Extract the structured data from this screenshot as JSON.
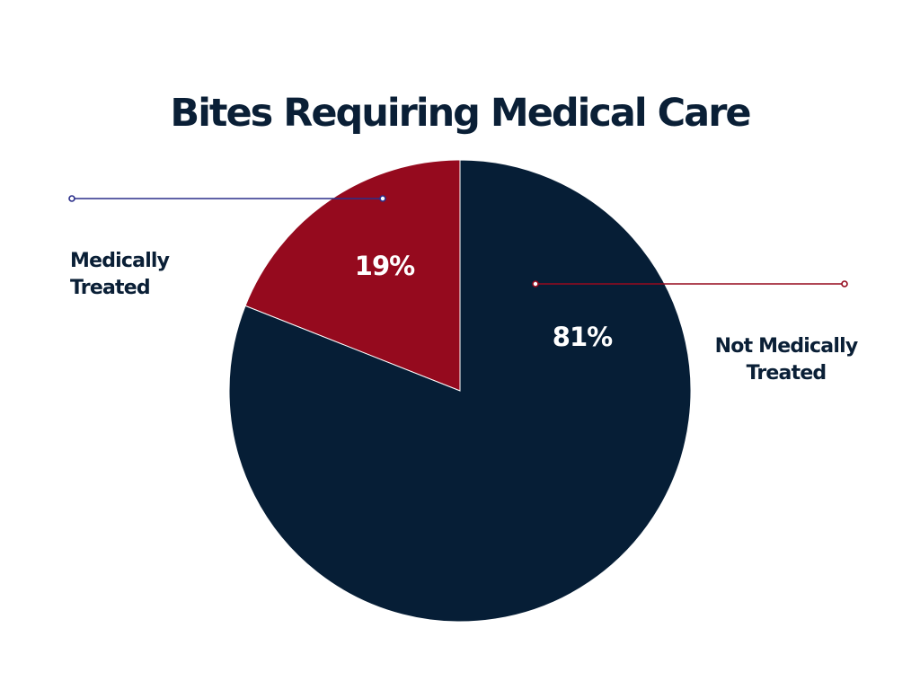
{
  "colors": {
    "background": "#ffffff",
    "title": "#0a1f36",
    "callout_text": "#0a1f36",
    "slice_label": "#ffffff",
    "slice_edge": "#ffffff"
  },
  "chart_data": {
    "type": "pie",
    "title": "Bites Requiring Medical Care",
    "start_angle_deg": 0,
    "direction": "counterclockwise",
    "slices": [
      {
        "label_lines": [
          "Medically",
          "Treated"
        ],
        "value": 19,
        "value_label": "19%",
        "color": "#950a1e",
        "leader_color": "#2b2f8a"
      },
      {
        "label_lines": [
          "Not Medically",
          "Treated"
        ],
        "value": 81,
        "value_label": "81%",
        "color": "#061e36",
        "leader_color": "#950a1e"
      }
    ]
  }
}
